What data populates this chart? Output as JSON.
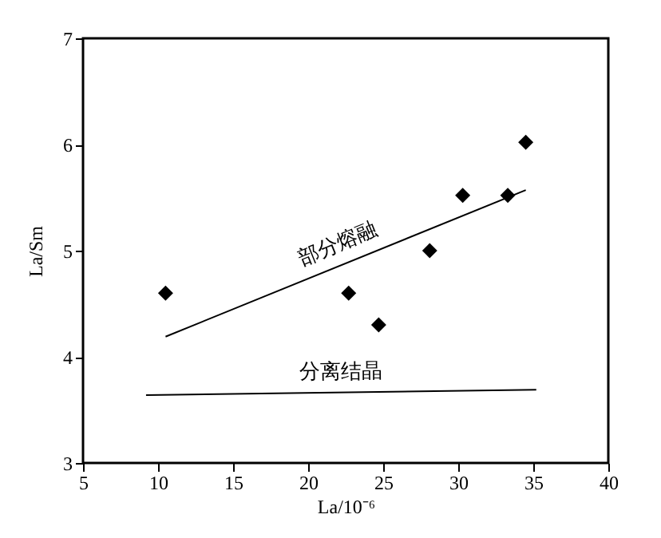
{
  "chart_data": {
    "type": "scatter",
    "xlabel": "La/10⁻⁶",
    "ylabel": "La/Sm",
    "xlim": [
      5,
      40
    ],
    "ylim": [
      3,
      7
    ],
    "xticks": [
      5,
      10,
      15,
      20,
      25,
      30,
      35,
      40
    ],
    "yticks": [
      3,
      4,
      5,
      6,
      7
    ],
    "grid": false,
    "legend": false,
    "series": [
      {
        "color": "#000000",
        "marker": "diamond",
        "x": [
          10.5,
          22.7,
          24.7,
          28.1,
          30.3,
          33.3,
          34.5
        ],
        "values": [
          4.6,
          4.6,
          4.3,
          5.0,
          5.52,
          5.52,
          6.02
        ]
      },
      {
        "type": "line",
        "name": "部分熔融",
        "color": "#000000",
        "marker": "none",
        "x": [
          10.5,
          34.5
        ],
        "values": [
          4.19,
          5.57
        ],
        "line_style": "solid"
      },
      {
        "type": "line",
        "name": "分离结晶",
        "color": "#000000",
        "marker": "none",
        "x": [
          9.2,
          35.2
        ],
        "values": [
          3.64,
          3.69
        ],
        "line_style": "solid"
      }
    ]
  }
}
